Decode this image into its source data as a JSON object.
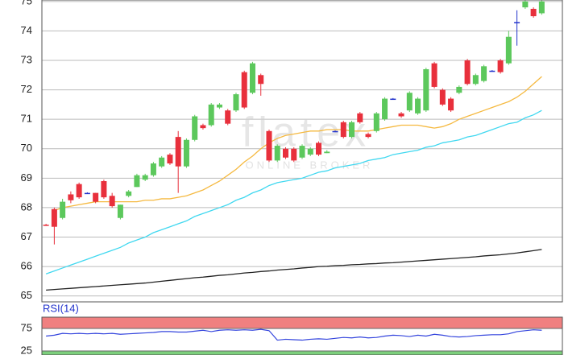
{
  "chart_data": [
    {
      "type": "candlestick",
      "watermark": "flatex",
      "watermark_sub": "ONLINE BROKER",
      "ylim": [
        64.8,
        75.05
      ],
      "yticks": [
        65,
        66,
        67,
        68,
        69,
        70,
        71,
        72,
        73,
        74,
        75
      ],
      "grid": true,
      "colors": {
        "up": "#5cc85c",
        "down": "#e8303c",
        "flat": "#2233cc"
      },
      "open": [
        67.42,
        67.95,
        67.65,
        68.45,
        68.8,
        68.5,
        68.5,
        68.9,
        68.4,
        67.65,
        68.4,
        68.7,
        68.95,
        69.1,
        69.4,
        69.8,
        70.4,
        69.4,
        70.3,
        70.8,
        70.8,
        71.4,
        71.3,
        71.3,
        72.6,
        71.9,
        72.5,
        70.6,
        69.6,
        70.0,
        70.0,
        69.7,
        69.8,
        70.2,
        69.85,
        70.6,
        70.9,
        70.4,
        71.2,
        70.5,
        70.6,
        71.0,
        71.7,
        71.2,
        71.3,
        71.2,
        71.3,
        72.9,
        72.0,
        71.7,
        71.9,
        73.0,
        72.2,
        72.3,
        72.65,
        73.0,
        72.9,
        74.3,
        74.8,
        74.75,
        74.6
      ],
      "high": [
        67.45,
        68.0,
        68.3,
        68.55,
        68.85,
        68.52,
        68.5,
        68.95,
        68.5,
        68.1,
        68.6,
        69.15,
        69.15,
        69.55,
        69.75,
        69.85,
        70.6,
        70.35,
        71.15,
        70.85,
        71.55,
        71.55,
        71.35,
        71.9,
        72.65,
        72.95,
        72.55,
        70.65,
        70.15,
        70.05,
        70.05,
        70.15,
        70.05,
        70.25,
        69.95,
        70.62,
        70.95,
        70.95,
        71.25,
        70.55,
        71.25,
        71.75,
        71.72,
        71.25,
        71.95,
        71.75,
        72.75,
        72.95,
        72.05,
        71.75,
        72.15,
        73.05,
        72.55,
        72.85,
        72.67,
        73.05,
        74.0,
        74.7,
        75.05,
        74.8,
        75.05
      ],
      "low": [
        67.38,
        66.75,
        67.6,
        68.15,
        68.3,
        68.48,
        68.15,
        68.3,
        68.0,
        67.6,
        68.35,
        68.7,
        68.9,
        69.05,
        69.35,
        69.45,
        68.5,
        69.35,
        70.25,
        70.65,
        70.75,
        71.35,
        70.8,
        71.25,
        71.35,
        71.85,
        71.8,
        69.55,
        69.55,
        69.65,
        69.55,
        69.65,
        69.75,
        69.75,
        69.85,
        70.58,
        70.35,
        70.35,
        70.85,
        70.35,
        70.55,
        70.95,
        71.68,
        71.05,
        71.25,
        71.15,
        71.25,
        72.05,
        71.45,
        71.25,
        71.85,
        72.15,
        72.15,
        72.25,
        72.63,
        72.55,
        72.85,
        73.5,
        74.75,
        74.45,
        74.55
      ],
      "close": [
        67.38,
        67.35,
        68.2,
        68.25,
        68.35,
        68.5,
        68.2,
        68.35,
        68.05,
        68.1,
        68.55,
        69.1,
        69.1,
        69.5,
        69.7,
        69.5,
        69.4,
        70.3,
        71.1,
        70.7,
        71.5,
        71.5,
        70.85,
        71.85,
        71.4,
        72.9,
        72.2,
        69.6,
        70.1,
        69.7,
        69.6,
        70.1,
        70.0,
        69.8,
        69.9,
        70.6,
        70.4,
        70.9,
        70.9,
        70.4,
        71.2,
        71.7,
        71.7,
        71.1,
        71.9,
        71.7,
        72.7,
        72.1,
        71.5,
        71.3,
        72.1,
        72.2,
        72.5,
        72.8,
        72.65,
        72.6,
        73.8,
        74.3,
        75.0,
        74.5,
        75.0
      ],
      "lines": [
        {
          "color": "#f5b940",
          "values": [
            null,
            67.9,
            68.0,
            68.05,
            68.1,
            68.15,
            68.2,
            68.2,
            68.2,
            68.2,
            68.2,
            68.2,
            68.25,
            68.25,
            68.3,
            68.3,
            68.35,
            68.4,
            68.5,
            68.6,
            68.75,
            68.9,
            69.1,
            69.3,
            69.55,
            69.75,
            70.0,
            70.2,
            70.35,
            70.45,
            70.5,
            70.55,
            70.6,
            70.6,
            70.65,
            70.65,
            70.65,
            70.6,
            70.6,
            70.6,
            70.65,
            70.7,
            70.75,
            70.8,
            70.8,
            70.8,
            70.75,
            70.7,
            70.75,
            70.85,
            71.0,
            71.1,
            71.2,
            71.3,
            71.4,
            71.5,
            71.6,
            71.75,
            71.95,
            72.2,
            72.45
          ]
        },
        {
          "color": "#40d8f0",
          "values": [
            65.75,
            65.85,
            65.95,
            66.05,
            66.15,
            66.25,
            66.35,
            66.45,
            66.55,
            66.65,
            66.8,
            66.9,
            67.0,
            67.15,
            67.25,
            67.35,
            67.45,
            67.55,
            67.7,
            67.8,
            67.9,
            68.0,
            68.1,
            68.25,
            68.35,
            68.5,
            68.6,
            68.75,
            68.85,
            68.9,
            68.95,
            69.0,
            69.1,
            69.2,
            69.25,
            69.35,
            69.4,
            69.45,
            69.5,
            69.6,
            69.65,
            69.7,
            69.8,
            69.85,
            69.9,
            69.95,
            70.05,
            70.1,
            70.2,
            70.25,
            70.3,
            70.4,
            70.45,
            70.55,
            70.65,
            70.75,
            70.85,
            70.9,
            71.05,
            71.15,
            71.3
          ]
        },
        {
          "color": "#222222",
          "values": [
            65.2,
            65.22,
            65.24,
            65.26,
            65.28,
            65.3,
            65.32,
            65.34,
            65.36,
            65.38,
            65.4,
            65.42,
            65.44,
            65.47,
            65.5,
            65.53,
            65.56,
            65.59,
            65.62,
            65.64,
            65.67,
            65.7,
            65.72,
            65.75,
            65.78,
            65.8,
            65.83,
            65.85,
            65.88,
            65.9,
            65.92,
            65.95,
            65.97,
            66.0,
            66.01,
            66.03,
            66.04,
            66.06,
            66.07,
            66.09,
            66.1,
            66.12,
            66.13,
            66.15,
            66.17,
            66.19,
            66.21,
            66.23,
            66.25,
            66.27,
            66.29,
            66.31,
            66.33,
            66.36,
            66.38,
            66.4,
            66.43,
            66.46,
            66.5,
            66.54,
            66.58
          ]
        }
      ]
    },
    {
      "type": "line",
      "title": "RSI(14)",
      "ylim": [
        16,
        100
      ],
      "yticks": [
        25,
        75
      ],
      "color": "#3344dd",
      "bands": [
        {
          "from": 75,
          "to": 100,
          "color": "#f08080"
        },
        {
          "from": 16,
          "to": 25,
          "color": "#7ccf7c"
        }
      ],
      "values": [
        58,
        60,
        64,
        63,
        64,
        63,
        64,
        63,
        64,
        62,
        63,
        64,
        65,
        66,
        68,
        68,
        67,
        67,
        69,
        71,
        68,
        71,
        72,
        71,
        72,
        71,
        73,
        70,
        49,
        51,
        50,
        49,
        51,
        52,
        51,
        53,
        55,
        54,
        56,
        54,
        55,
        58,
        60,
        59,
        57,
        60,
        58,
        62,
        60,
        57,
        56,
        57,
        59,
        60,
        61,
        61,
        63,
        68,
        70,
        72,
        71
      ]
    }
  ]
}
